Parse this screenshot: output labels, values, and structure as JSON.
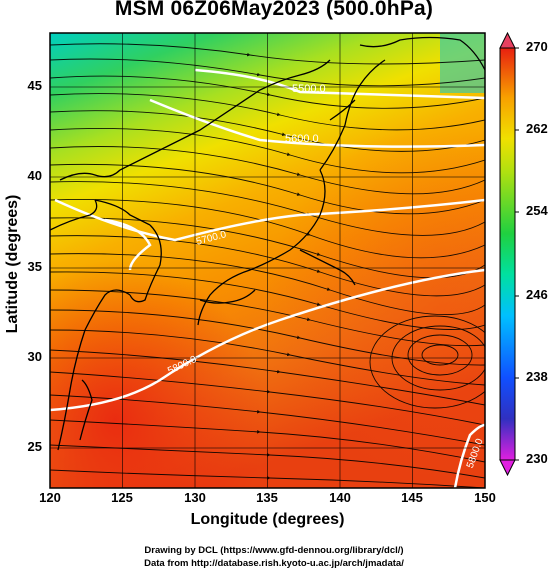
{
  "title": "MSM 06Z06May2023 (500.0hPa)",
  "axes": {
    "xlabel": "Longitude (degrees)",
    "ylabel": "Latitude  (degrees)",
    "x_ticks": [
      "120",
      "125",
      "130",
      "135",
      "140",
      "145",
      "150"
    ],
    "y_ticks": [
      "25",
      "30",
      "35",
      "40",
      "45"
    ]
  },
  "colorbar": {
    "ticks": [
      "270",
      "262",
      "254",
      "246",
      "238",
      "230"
    ],
    "min": 230,
    "max": 270,
    "colors": [
      "#e020e0",
      "#3030c0",
      "#1050ff",
      "#00c0ff",
      "#00e0a0",
      "#20d040",
      "#b0e010",
      "#f0e000",
      "#f8a000",
      "#f05010",
      "#e82010"
    ]
  },
  "contours": {
    "labels": [
      "5500.0",
      "5600.0",
      "5700.0",
      "5800.0",
      "5800.0"
    ]
  },
  "footer": {
    "line1": "Drawing by DCL (https://www.gfd-dennou.org/library/dcl/)",
    "line2": "Data from http://database.rish.kyoto-u.ac.jp/arch/jmadata/"
  },
  "map_data": {
    "lon_range": [
      120,
      150
    ],
    "lat_range": [
      22.5,
      47.5
    ],
    "field": "temperature (K) with wind streamlines",
    "gridlines": true
  }
}
